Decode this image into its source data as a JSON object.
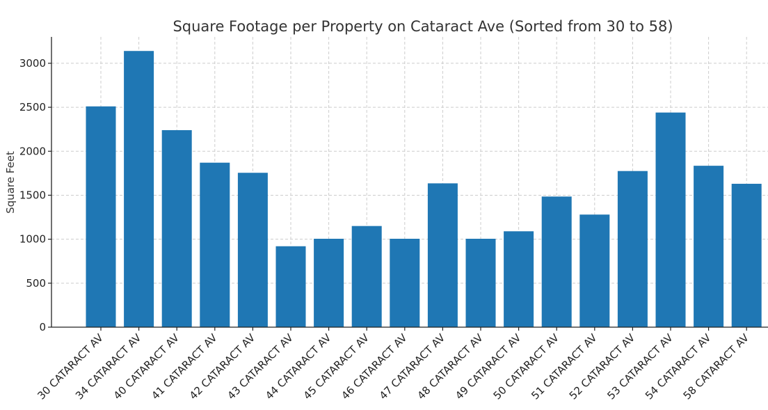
{
  "chart_data": {
    "type": "bar",
    "title": "Square Footage per Property on Cataract Ave (Sorted from 30 to 58)",
    "xlabel": "",
    "ylabel": "Square Feet",
    "categories": [
      "30 CATARACT AV",
      "34 CATARACT AV",
      "40 CATARACT AV",
      "41 CATARACT AV",
      "42 CATARACT AV",
      "43 CATARACT AV",
      "44 CATARACT AV",
      "45 CATARACT AV",
      "46 CATARACT AV",
      "47 CATARACT AV",
      "48 CATARACT AV",
      "49 CATARACT AV",
      "50 CATARACT AV",
      "51 CATARACT AV",
      "52 CATARACT AV",
      "53 CATARACT AV",
      "54 CATARACT AV",
      "58 CATARACT AV"
    ],
    "values": [
      2510,
      3140,
      2240,
      1870,
      1755,
      920,
      1005,
      1150,
      1005,
      1635,
      1005,
      1090,
      1485,
      1280,
      1775,
      2440,
      1835,
      1630
    ],
    "ylim": [
      0,
      3300
    ],
    "yticks": [
      0,
      500,
      1000,
      1500,
      2000,
      2500,
      3000
    ],
    "grid": true,
    "bar_color": "#1f77b4",
    "tick_label_rotation": "45 degrees"
  }
}
